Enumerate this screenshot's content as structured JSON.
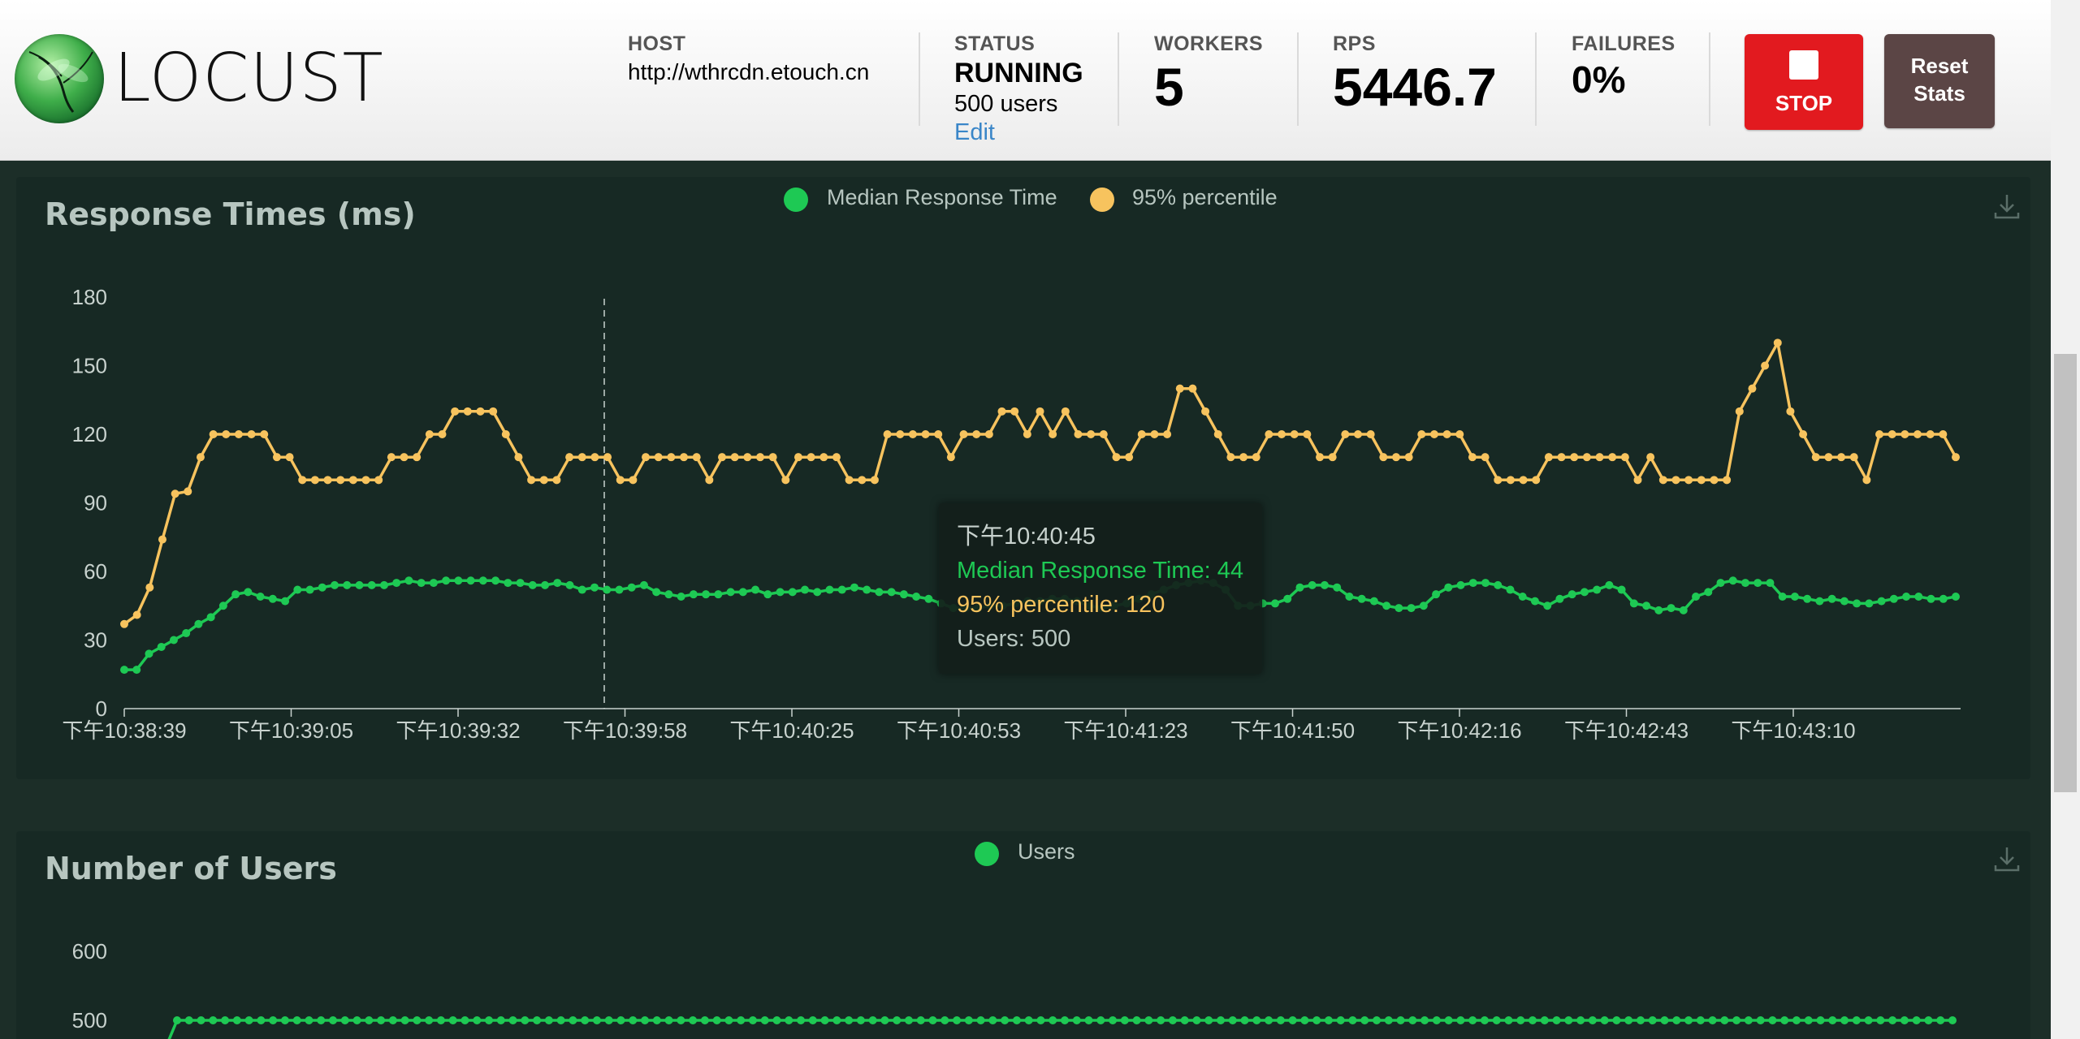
{
  "app": {
    "logo_text": "LOCUST"
  },
  "header": {
    "host": {
      "label": "HOST",
      "value": "http://wthrcdn.etouch.cn"
    },
    "status": {
      "label": "STATUS",
      "value": "RUNNING",
      "users": "500 users",
      "edit_label": "Edit"
    },
    "workers": {
      "label": "WORKERS",
      "value": "5"
    },
    "rps": {
      "label": "RPS",
      "value": "5446.7"
    },
    "failures": {
      "label": "FAILURES",
      "value": "0%"
    },
    "stop_label": "STOP",
    "reset_label_line1": "Reset",
    "reset_label_line2": "Stats"
  },
  "colors": {
    "median": "#1ec954",
    "p95": "#f7c35e",
    "users": "#1ec954",
    "tooltip_users": "#b7c6c0"
  },
  "response_chart": {
    "title": "Response Times (ms)",
    "legend": [
      "Median Response Time",
      "95% percentile"
    ],
    "tooltip": {
      "time": "下午10:40:45",
      "median": "Median Response Time: 44",
      "p95": "95% percentile: 120",
      "users": "Users: 500"
    }
  },
  "users_chart": {
    "title": "Number of Users",
    "legend": [
      "Users"
    ]
  },
  "chart_data": [
    {
      "type": "line",
      "title": "Response Times (ms)",
      "xlabel": "",
      "ylabel": "",
      "ylim": [
        0,
        180
      ],
      "y_ticks": [
        0,
        30,
        60,
        90,
        120,
        150,
        180
      ],
      "x_tick_labels": [
        "下午10:38:39",
        "下午10:39:05",
        "下午10:39:32",
        "下午10:39:58",
        "下午10:40:25",
        "下午10:40:53",
        "下午10:41:23",
        "下午10:41:50",
        "下午10:42:16",
        "下午10:42:43",
        "下午10:43:10"
      ],
      "legend_position": "top-center",
      "grid": false,
      "series": [
        {
          "name": "Median Response Time",
          "values": [
            17,
            17,
            24,
            27,
            30,
            33,
            37,
            40,
            45,
            50,
            51,
            49,
            48,
            47,
            52,
            52,
            53,
            54,
            54,
            54,
            54,
            54,
            55,
            56,
            55,
            55,
            56,
            56,
            56,
            56,
            56,
            55,
            55,
            54,
            54,
            55,
            54,
            52,
            53,
            52,
            52,
            53,
            54,
            51,
            50,
            49,
            50,
            50,
            50,
            51,
            51,
            52,
            50,
            51,
            51,
            52,
            51,
            52,
            52,
            53,
            52,
            51,
            51,
            50,
            49,
            48,
            46,
            44,
            44,
            44,
            45,
            45,
            46,
            47,
            47,
            48,
            48,
            47,
            45,
            44,
            45,
            46,
            48,
            50,
            52,
            54,
            55,
            56,
            55,
            52,
            45,
            45,
            46,
            46,
            48,
            53,
            54,
            54,
            53,
            49,
            48,
            47,
            45,
            44,
            44,
            45,
            50,
            53,
            54,
            55,
            55,
            54,
            52,
            49,
            47,
            45,
            48,
            50,
            51,
            52,
            54,
            52,
            46,
            45,
            43,
            44,
            43,
            49,
            51,
            55,
            56,
            55,
            55,
            55,
            49,
            49,
            48,
            47,
            48,
            47,
            46,
            46,
            47,
            48,
            49,
            49,
            48,
            48,
            49
          ]
        },
        {
          "name": "95% percentile",
          "values": [
            37,
            41,
            53,
            74,
            94,
            95,
            110,
            120,
            120,
            120,
            120,
            120,
            110,
            110,
            100,
            100,
            100,
            100,
            100,
            100,
            100,
            110,
            110,
            110,
            120,
            120,
            130,
            130,
            130,
            130,
            120,
            110,
            100,
            100,
            100,
            110,
            110,
            110,
            110,
            100,
            100,
            110,
            110,
            110,
            110,
            110,
            100,
            110,
            110,
            110,
            110,
            110,
            100,
            110,
            110,
            110,
            110,
            100,
            100,
            100,
            120,
            120,
            120,
            120,
            120,
            110,
            120,
            120,
            120,
            130,
            130,
            120,
            130,
            120,
            130,
            120,
            120,
            120,
            110,
            110,
            120,
            120,
            120,
            140,
            140,
            130,
            120,
            110,
            110,
            110,
            120,
            120,
            120,
            120,
            110,
            110,
            120,
            120,
            120,
            110,
            110,
            110,
            120,
            120,
            120,
            120,
            110,
            110,
            100,
            100,
            100,
            100,
            110,
            110,
            110,
            110,
            110,
            110,
            110,
            100,
            110,
            100,
            100,
            100,
            100,
            100,
            100,
            130,
            140,
            150,
            160,
            130,
            120,
            110,
            110,
            110,
            110,
            100,
            120,
            120,
            120,
            120,
            120,
            120,
            110
          ]
        }
      ]
    },
    {
      "type": "line",
      "title": "Number of Users",
      "xlabel": "",
      "ylabel": "",
      "y_ticks_visible": [
        500,
        600
      ],
      "legend_position": "top-center",
      "grid": false,
      "series": [
        {
          "name": "Users",
          "values": [
            500
          ]
        }
      ]
    }
  ]
}
